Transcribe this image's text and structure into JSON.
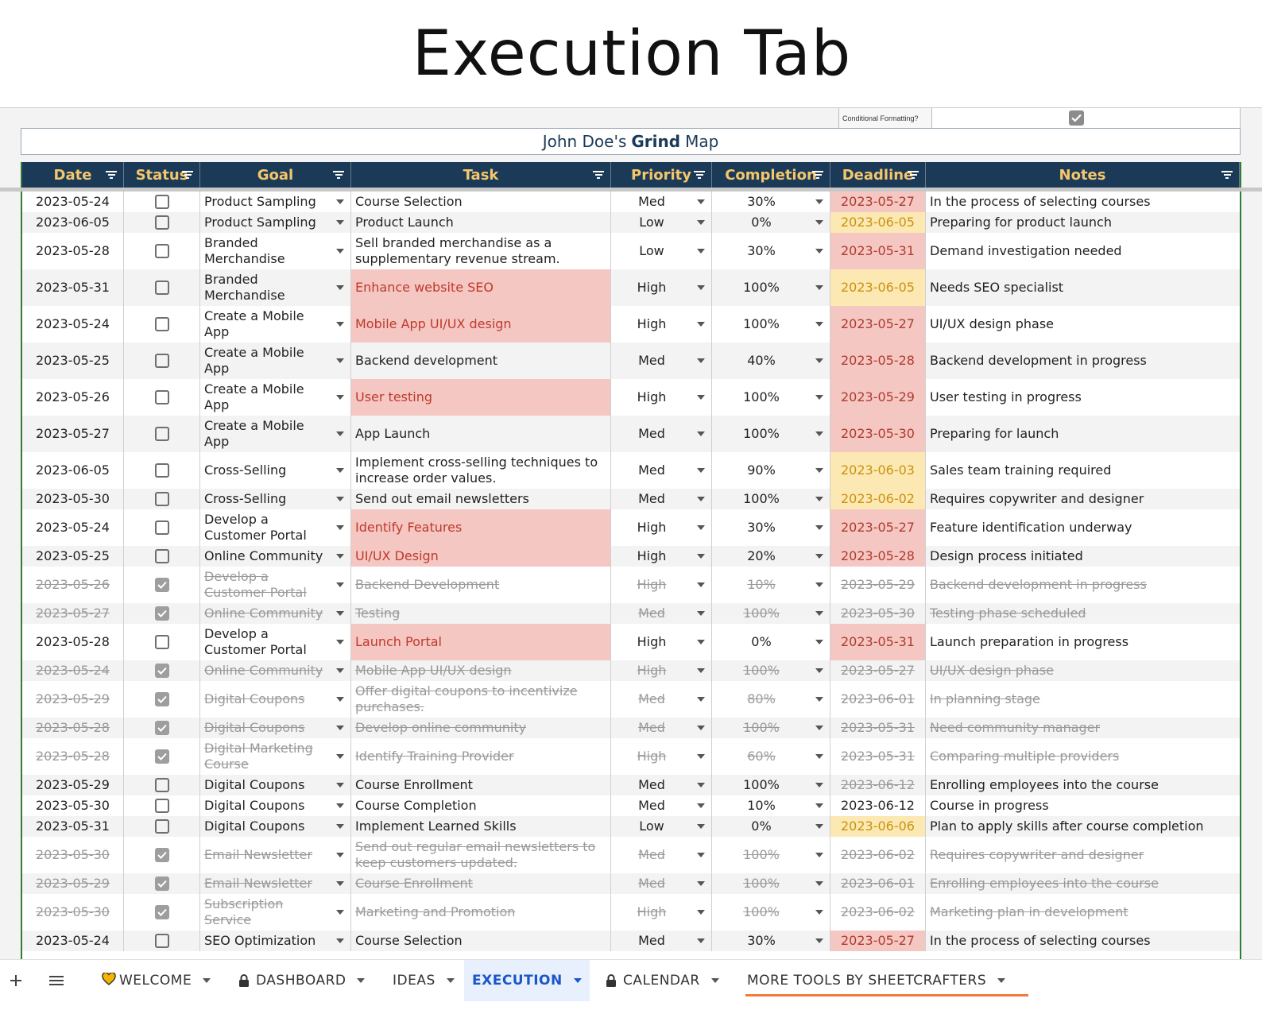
{
  "banner": {
    "title": "Execution Tab"
  },
  "sheet": {
    "cf_label": "Conditional Formatting?",
    "title_prefix": "John Doe's",
    "title_bold": "Grind",
    "title_suffix": "Map",
    "columns": [
      "Date",
      "Status",
      "Goal",
      "Task",
      "Priority",
      "Completion",
      "Deadline",
      "Notes"
    ],
    "rows": [
      {
        "date": "2023-05-24",
        "done": false,
        "goal": "Product Sampling",
        "task": "Course Selection",
        "priority": "Med",
        "completion": "30%",
        "deadline": "2023-05-27",
        "notes": "In the process of selecting courses",
        "task_hl": "",
        "dl_hl": "red",
        "h": 26
      },
      {
        "date": "2023-06-05",
        "done": false,
        "goal": "Product Sampling",
        "task": "Product Launch",
        "priority": "Low",
        "completion": "0%",
        "deadline": "2023-06-05",
        "notes": "Preparing for product launch",
        "task_hl": "",
        "dl_hl": "yellow",
        "h": 26
      },
      {
        "date": "2023-05-28",
        "done": false,
        "goal": "Branded Merchandise",
        "task": "Sell branded merchandise as a supplementary revenue stream.",
        "priority": "Low",
        "completion": "30%",
        "deadline": "2023-05-31",
        "notes": "Demand investigation needed",
        "task_hl": "",
        "dl_hl": "red",
        "h": 46
      },
      {
        "date": "2023-05-31",
        "done": false,
        "goal": "Branded Merchandise",
        "task": "Enhance website SEO",
        "priority": "High",
        "completion": "100%",
        "deadline": "2023-06-05",
        "notes": "Needs SEO specialist",
        "task_hl": "red",
        "dl_hl": "yellow",
        "h": 46
      },
      {
        "date": "2023-05-24",
        "done": false,
        "goal": "Create a Mobile App",
        "task": "Mobile App UI/UX design",
        "priority": "High",
        "completion": "100%",
        "deadline": "2023-05-27",
        "notes": "UI/UX design phase",
        "task_hl": "red",
        "dl_hl": "red",
        "h": 46
      },
      {
        "date": "2023-05-25",
        "done": false,
        "goal": "Create a Mobile App",
        "task": "Backend development",
        "priority": "Med",
        "completion": "40%",
        "deadline": "2023-05-28",
        "notes": "Backend development in progress",
        "task_hl": "",
        "dl_hl": "red",
        "h": 46
      },
      {
        "date": "2023-05-26",
        "done": false,
        "goal": "Create a Mobile App",
        "task": "User testing",
        "priority": "High",
        "completion": "100%",
        "deadline": "2023-05-29",
        "notes": "User testing in progress",
        "task_hl": "red",
        "dl_hl": "red",
        "h": 46
      },
      {
        "date": "2023-05-27",
        "done": false,
        "goal": "Create a Mobile App",
        "task": "App Launch",
        "priority": "Med",
        "completion": "100%",
        "deadline": "2023-05-30",
        "notes": "Preparing for launch",
        "task_hl": "",
        "dl_hl": "red",
        "h": 46
      },
      {
        "date": "2023-06-05",
        "done": false,
        "goal": "Cross-Selling",
        "task": "Implement cross-selling techniques to increase order values.",
        "priority": "Med",
        "completion": "90%",
        "deadline": "2023-06-03",
        "notes": "Sales team training required",
        "task_hl": "",
        "dl_hl": "yellow",
        "h": 46
      },
      {
        "date": "2023-05-30",
        "done": false,
        "goal": "Cross-Selling",
        "task": "Send out email newsletters",
        "priority": "Med",
        "completion": "100%",
        "deadline": "2023-06-02",
        "notes": "Requires copywriter and designer",
        "task_hl": "",
        "dl_hl": "yellow",
        "h": 26
      },
      {
        "date": "2023-05-24",
        "done": false,
        "goal": "Develop a Customer Portal",
        "task": "Identify Features",
        "priority": "High",
        "completion": "30%",
        "deadline": "2023-05-27",
        "notes": "Feature identification underway",
        "task_hl": "red",
        "dl_hl": "red",
        "h": 46
      },
      {
        "date": "2023-05-25",
        "done": false,
        "goal": "Online Community",
        "task": "UI/UX Design",
        "priority": "High",
        "completion": "20%",
        "deadline": "2023-05-28",
        "notes": "Design process initiated",
        "task_hl": "red",
        "dl_hl": "red",
        "h": 26
      },
      {
        "date": "2023-05-26",
        "done": true,
        "goal": "Develop a Customer Portal",
        "task": "Backend Development",
        "priority": "High",
        "completion": "10%",
        "deadline": "2023-05-29",
        "notes": "Backend development in progress",
        "task_hl": "",
        "dl_hl": "",
        "h": 46
      },
      {
        "date": "2023-05-27",
        "done": true,
        "goal": "Online Community",
        "task": "Testing",
        "priority": "Med",
        "completion": "100%",
        "deadline": "2023-05-30",
        "notes": "Testing phase scheduled",
        "task_hl": "",
        "dl_hl": "",
        "h": 26
      },
      {
        "date": "2023-05-28",
        "done": false,
        "goal": "Develop a Customer Portal",
        "task": "Launch Portal",
        "priority": "High",
        "completion": "0%",
        "deadline": "2023-05-31",
        "notes": "Launch preparation in progress",
        "task_hl": "red",
        "dl_hl": "red",
        "h": 46
      },
      {
        "date": "2023-05-24",
        "done": true,
        "goal": "Online Community",
        "task": "Mobile App UI/UX design",
        "priority": "High",
        "completion": "100%",
        "deadline": "2023-05-27",
        "notes": "UI/UX design phase",
        "task_hl": "",
        "dl_hl": "",
        "h": 26
      },
      {
        "date": "2023-05-29",
        "done": true,
        "goal": "Digital Coupons",
        "task": "Offer digital coupons to incentivize purchases.",
        "priority": "Med",
        "completion": "80%",
        "deadline": "2023-06-01",
        "notes": "In planning stage",
        "task_hl": "",
        "dl_hl": "",
        "h": 46
      },
      {
        "date": "2023-05-28",
        "done": true,
        "goal": "Digital Coupons",
        "task": "Develop online community",
        "priority": "Med",
        "completion": "100%",
        "deadline": "2023-05-31",
        "notes": "Need community manager",
        "task_hl": "",
        "dl_hl": "",
        "h": 26
      },
      {
        "date": "2023-05-28",
        "done": true,
        "goal": "Digital Marketing Course",
        "task": "Identify Training Provider",
        "priority": "High",
        "completion": "60%",
        "deadline": "2023-05-31",
        "notes": "Comparing multiple providers",
        "task_hl": "",
        "dl_hl": "",
        "h": 46
      },
      {
        "date": "2023-05-29",
        "done": false,
        "goal": "Digital Coupons",
        "task": "Course Enrollment",
        "priority": "Med",
        "completion": "100%",
        "deadline": "2023-06-12",
        "notes": "Enrolling employees into the course",
        "task_hl": "",
        "dl_hl": "strike",
        "h": 26
      },
      {
        "date": "2023-05-30",
        "done": false,
        "goal": "Digital Coupons",
        "task": "Course Completion",
        "priority": "Med",
        "completion": "10%",
        "deadline": "2023-06-12",
        "notes": "Course in progress",
        "task_hl": "",
        "dl_hl": "",
        "h": 26
      },
      {
        "date": "2023-05-31",
        "done": false,
        "goal": "Digital Coupons",
        "task": "Implement Learned Skills",
        "priority": "Low",
        "completion": "0%",
        "deadline": "2023-06-06",
        "notes": "Plan to apply skills after course completion",
        "task_hl": "",
        "dl_hl": "yellow",
        "h": 26
      },
      {
        "date": "2023-05-30",
        "done": true,
        "goal": "Email Newsletter",
        "task": "Send out regular email newsletters to keep customers updated.",
        "priority": "Med",
        "completion": "100%",
        "deadline": "2023-06-02",
        "notes": "Requires copywriter and designer",
        "task_hl": "",
        "dl_hl": "",
        "h": 46
      },
      {
        "date": "2023-05-29",
        "done": true,
        "goal": "Email Newsletter",
        "task": "Course Enrollment",
        "priority": "Med",
        "completion": "100%",
        "deadline": "2023-06-01",
        "notes": "Enrolling employees into the course",
        "task_hl": "",
        "dl_hl": "",
        "h": 26
      },
      {
        "date": "2023-05-30",
        "done": true,
        "goal": "Subscription Service",
        "task": "Marketing and Promotion",
        "priority": "High",
        "completion": "100%",
        "deadline": "2023-06-02",
        "notes": "Marketing plan in development",
        "task_hl": "",
        "dl_hl": "",
        "h": 46
      },
      {
        "date": "2023-05-24",
        "done": false,
        "goal": "SEO Optimization",
        "task": "Course Selection",
        "priority": "Med",
        "completion": "30%",
        "deadline": "2023-05-27",
        "notes": "In the process of selecting courses",
        "task_hl": "",
        "dl_hl": "red",
        "h": 26
      }
    ]
  },
  "tabs": [
    {
      "label": "WELCOME",
      "icon": "heart-icon",
      "active": false
    },
    {
      "label": "DASHBOARD",
      "icon": "lock-icon",
      "active": false
    },
    {
      "label": "IDEAS",
      "icon": "",
      "active": false
    },
    {
      "label": "EXECUTION",
      "icon": "",
      "active": true
    },
    {
      "label": "CALENDAR",
      "icon": "lock-icon",
      "active": false
    },
    {
      "label": "MORE TOOLS BY SHEETCRAFTERS",
      "icon": "",
      "active": false
    }
  ],
  "colors": {
    "header_bg": "#1b3a57",
    "header_text": "#f6c66a",
    "red_hl": "#f4c7c3",
    "yellow_hl": "#fce8b2",
    "active_tab": "#1a56c9"
  }
}
